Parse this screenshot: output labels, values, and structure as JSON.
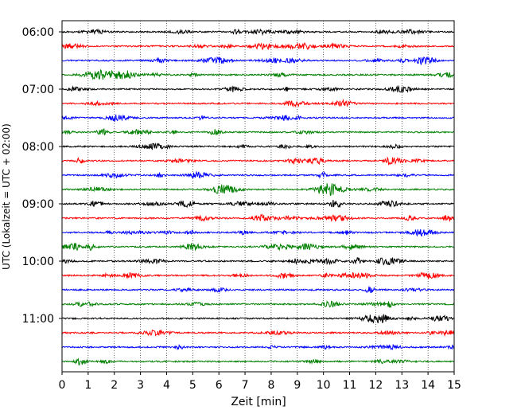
{
  "chart_data": {
    "type": "line",
    "title": "",
    "xlabel": "Zeit  [min]",
    "ylabel": "UTC (Lokalzeit = UTC + 02:00)",
    "xlim": [
      0,
      15
    ],
    "xticks": [
      0,
      1,
      2,
      3,
      4,
      5,
      6,
      7,
      8,
      9,
      10,
      11,
      12,
      13,
      14,
      15
    ],
    "x_grid": true,
    "y_grid": false,
    "legend": "none",
    "trace_interval_minutes": 15,
    "trace_colors": [
      "#000000",
      "#ff0000",
      "#0000ff",
      "#008000"
    ],
    "y_tick_labels": [
      "06:00",
      "07:00",
      "08:00",
      "09:00",
      "10:00",
      "11:00"
    ],
    "trace_start_times": [
      "06:00",
      "06:15",
      "06:30",
      "06:45",
      "07:00",
      "07:15",
      "07:30",
      "07:45",
      "08:00",
      "08:15",
      "08:30",
      "08:45",
      "09:00",
      "09:15",
      "09:30",
      "09:45",
      "10:00",
      "10:15",
      "10:30",
      "10:45",
      "11:00",
      "11:15",
      "11:30",
      "11:45"
    ]
  }
}
